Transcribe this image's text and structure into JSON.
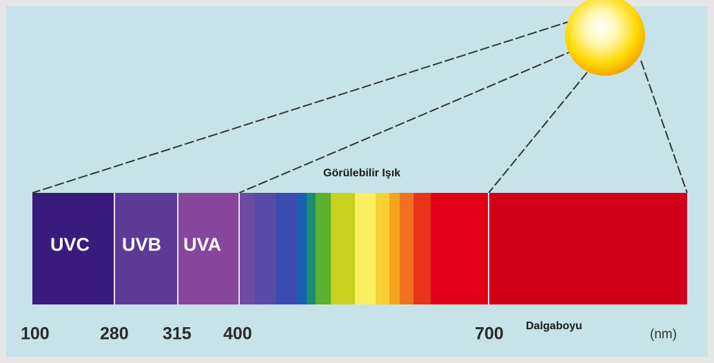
{
  "bands": [
    "UVC",
    "UVB",
    "UVA"
  ],
  "visible_label": "Görülebilir Işık",
  "axis_label": "Dalgaboyu",
  "unit": "(nm)",
  "ticks": [
    "100",
    "280",
    "315",
    "400",
    "700"
  ]
}
